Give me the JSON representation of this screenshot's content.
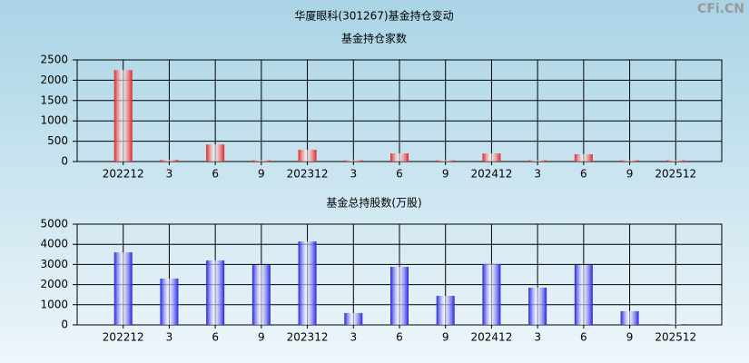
{
  "header": {
    "title": "华厦眼科(301267)基金持仓变动",
    "watermark": "CFi.CN"
  },
  "chart_data": [
    {
      "type": "bar",
      "title": "基金持仓家数",
      "categories": [
        "202212",
        "3",
        "6",
        "9",
        "202312",
        "3",
        "6",
        "9",
        "202412",
        "3",
        "6",
        "9",
        "202512"
      ],
      "values": [
        2250,
        40,
        420,
        30,
        290,
        30,
        200,
        30,
        200,
        30,
        180,
        30,
        30
      ],
      "color": "#e02424",
      "ylim": [
        0,
        2500
      ],
      "yticks": [
        0,
        500,
        1000,
        1500,
        2000,
        2500
      ],
      "grid": true
    },
    {
      "type": "bar",
      "title": "基金总持股数(万股)",
      "categories": [
        "202212",
        "3",
        "6",
        "9",
        "202312",
        "3",
        "6",
        "9",
        "202412",
        "3",
        "6",
        "9",
        "202512"
      ],
      "values": [
        3600,
        2300,
        3200,
        2970,
        4140,
        590,
        2880,
        1440,
        3020,
        1850,
        2970,
        680,
        40
      ],
      "color": "#2424e0",
      "ylim": [
        0,
        5000
      ],
      "yticks": [
        0,
        1000,
        2000,
        3000,
        4000,
        5000
      ],
      "grid": true
    }
  ]
}
